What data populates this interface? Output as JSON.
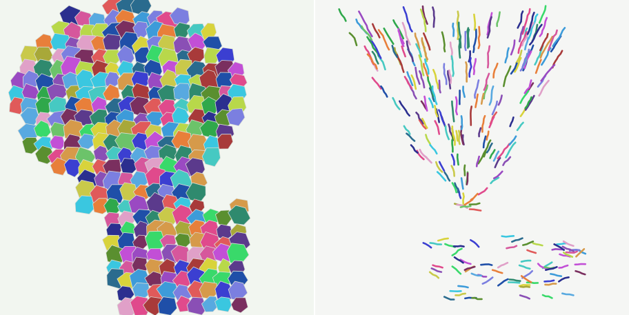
{
  "panels": [
    {
      "name": "voronoi-cell-segmentation",
      "background": "#f2f6f0"
    },
    {
      "name": "cell-trajectory-tracks",
      "background": "#f5f6f4"
    }
  ],
  "palette": [
    "#3b3fd1",
    "#c24fd6",
    "#2fa84b",
    "#e04a8c",
    "#3d9bd9",
    "#6cc36a",
    "#d8d33b",
    "#8a4fb5",
    "#2b2f8f",
    "#e87f3a",
    "#46c9c2",
    "#a83a3a",
    "#7b7fe0",
    "#5a8f2f",
    "#d6579c",
    "#2a6b8e",
    "#c9c94a",
    "#5b3a8c",
    "#39d96a",
    "#e0a0c8",
    "#1f4fa8",
    "#a8a839",
    "#7a2f5f",
    "#58a9e0",
    "#b8d84a",
    "#3ac7e0",
    "#9a4ac2",
    "#e05a5a",
    "#2f8a6e",
    "#d69a4a"
  ]
}
